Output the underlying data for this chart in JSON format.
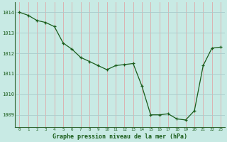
{
  "x": [
    0,
    1,
    2,
    3,
    4,
    5,
    6,
    7,
    8,
    9,
    10,
    11,
    12,
    13,
    14,
    15,
    16,
    17,
    18,
    19,
    20,
    21,
    22,
    23
  ],
  "y": [
    1014.0,
    1013.85,
    1013.6,
    1013.5,
    1013.3,
    1012.5,
    1012.2,
    1011.8,
    1011.6,
    1011.4,
    1011.2,
    1011.4,
    1011.45,
    1011.5,
    1010.4,
    1009.0,
    1009.0,
    1009.05,
    1008.8,
    1008.75,
    1009.2,
    1011.4,
    1012.25,
    1012.3
  ],
  "line_color": "#1a5c1a",
  "marker": "+",
  "bg_color": "#c8eae4",
  "grid_color_x": "#ddaaaa",
  "grid_color_y": "#aacccc",
  "xlabel": "Graphe pression niveau de la mer (hPa)",
  "xlabel_color": "#1a5c1a",
  "tick_color": "#1a5c1a",
  "yticks": [
    1009,
    1010,
    1011,
    1012,
    1013,
    1014
  ],
  "xticks": [
    0,
    1,
    2,
    3,
    4,
    5,
    6,
    7,
    8,
    9,
    10,
    11,
    12,
    13,
    14,
    15,
    16,
    17,
    18,
    19,
    20,
    21,
    22,
    23
  ],
  "ylim": [
    1008.4,
    1014.5
  ],
  "xlim": [
    -0.5,
    23.5
  ]
}
